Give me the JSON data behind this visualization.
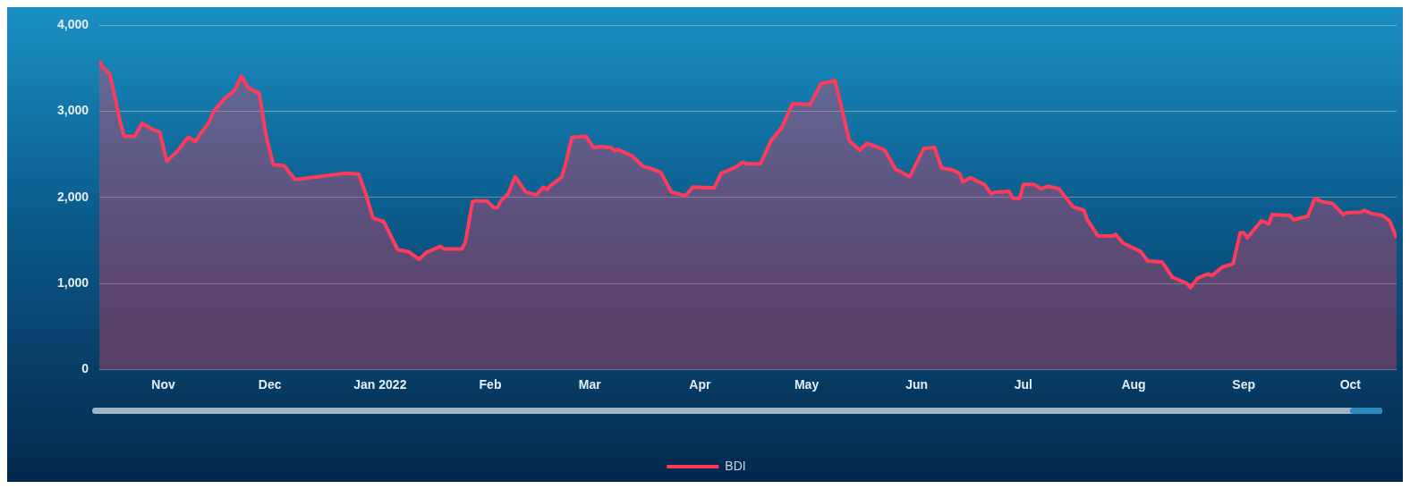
{
  "chart_data": {
    "type": "area",
    "x": [
      "2021-10-14",
      "2021-10-15",
      "2021-10-17",
      "2021-10-20",
      "2021-10-21",
      "2021-10-24",
      "2021-10-26",
      "2021-10-29",
      "2021-10-31",
      "2021-11-02",
      "2021-11-05",
      "2021-11-07",
      "2021-11-08",
      "2021-11-10",
      "2021-11-12",
      "2021-11-14",
      "2021-11-15",
      "2021-11-18",
      "2021-11-21",
      "2021-11-23",
      "2021-11-25",
      "2021-11-28",
      "2021-11-30",
      "2021-12-02",
      "2021-12-05",
      "2021-12-08",
      "2021-12-09",
      "2021-12-22",
      "2021-12-26",
      "2021-12-28",
      "2021-12-30",
      "2022-01-02",
      "2022-01-06",
      "2022-01-09",
      "2022-01-12",
      "2022-01-14",
      "2022-01-18",
      "2022-01-19",
      "2022-01-24",
      "2022-01-25",
      "2022-01-27",
      "2022-01-28",
      "2022-01-31",
      "2022-02-02",
      "2022-02-03",
      "2022-02-04",
      "2022-02-06",
      "2022-02-08",
      "2022-02-10",
      "2022-02-11",
      "2022-02-14",
      "2022-02-16",
      "2022-02-17",
      "2022-02-18",
      "2022-02-21",
      "2022-02-22",
      "2022-02-24",
      "2022-02-28",
      "2022-03-02",
      "2022-03-04",
      "2022-03-07",
      "2022-03-08",
      "2022-03-09",
      "2022-03-13",
      "2022-03-16",
      "2022-03-18",
      "2022-03-21",
      "2022-03-24",
      "2022-03-28",
      "2022-03-30",
      "2022-04-05",
      "2022-04-07",
      "2022-04-11",
      "2022-04-13",
      "2022-04-14",
      "2022-04-18",
      "2022-04-21",
      "2022-04-24",
      "2022-04-27",
      "2022-05-02",
      "2022-05-05",
      "2022-05-09",
      "2022-05-11",
      "2022-05-13",
      "2022-05-16",
      "2022-05-18",
      "2022-05-23",
      "2022-05-26",
      "2022-05-30",
      "2022-06-03",
      "2022-06-06",
      "2022-06-08",
      "2022-06-11",
      "2022-06-13",
      "2022-06-14",
      "2022-06-16",
      "2022-06-20",
      "2022-06-22",
      "2022-06-23",
      "2022-06-27",
      "2022-06-28",
      "2022-06-30",
      "2022-07-01",
      "2022-07-04",
      "2022-07-06",
      "2022-07-08",
      "2022-07-11",
      "2022-07-15",
      "2022-07-18",
      "2022-07-19",
      "2022-07-22",
      "2022-07-26",
      "2022-07-27",
      "2022-07-29",
      "2022-08-03",
      "2022-08-05",
      "2022-08-09",
      "2022-08-12",
      "2022-08-16",
      "2022-08-17",
      "2022-08-19",
      "2022-08-22",
      "2022-08-23",
      "2022-08-26",
      "2022-08-29",
      "2022-08-31",
      "2022-09-01",
      "2022-09-02",
      "2022-09-06",
      "2022-09-08",
      "2022-09-09",
      "2022-09-14",
      "2022-09-15",
      "2022-09-19",
      "2022-09-21",
      "2022-09-23",
      "2022-09-26",
      "2022-09-29",
      "2022-09-30",
      "2022-10-04",
      "2022-10-05",
      "2022-10-07",
      "2022-10-10",
      "2022-10-12",
      "2022-10-14"
    ],
    "series": [
      {
        "name": "BDI",
        "color": "#ff3b5c",
        "values": [
          3590,
          3510,
          3430,
          2860,
          2710,
          2710,
          2860,
          2790,
          2760,
          2420,
          2540,
          2650,
          2700,
          2650,
          2770,
          2880,
          2990,
          3140,
          3240,
          3410,
          3270,
          3210,
          2700,
          2380,
          2370,
          2210,
          2210,
          2280,
          2270,
          2040,
          1760,
          1720,
          1390,
          1370,
          1280,
          1360,
          1430,
          1400,
          1400,
          1480,
          1950,
          1960,
          1960,
          1880,
          1880,
          1960,
          2040,
          2240,
          2120,
          2060,
          2030,
          2120,
          2090,
          2140,
          2230,
          2360,
          2700,
          2710,
          2580,
          2590,
          2580,
          2540,
          2560,
          2480,
          2360,
          2340,
          2290,
          2060,
          2020,
          2120,
          2110,
          2280,
          2350,
          2410,
          2390,
          2390,
          2660,
          2810,
          3090,
          3080,
          3320,
          3360,
          3020,
          2660,
          2550,
          2630,
          2550,
          2330,
          2240,
          2570,
          2580,
          2340,
          2320,
          2280,
          2180,
          2230,
          2150,
          2040,
          2060,
          2070,
          1990,
          1990,
          2150,
          2150,
          2100,
          2130,
          2100,
          1890,
          1850,
          1740,
          1550,
          1550,
          1570,
          1470,
          1370,
          1260,
          1250,
          1070,
          1000,
          950,
          1060,
          1110,
          1090,
          1190,
          1230,
          1590,
          1590,
          1530,
          1730,
          1690,
          1800,
          1790,
          1740,
          1780,
          1990,
          1950,
          1930,
          1800,
          1820,
          1830,
          1850,
          1810,
          1790,
          1730,
          1530
        ]
      }
    ],
    "xlim": [
      "2021-10-14",
      "2022-10-14"
    ],
    "xticks": [
      {
        "value": "2021-11-01",
        "label": "Nov"
      },
      {
        "value": "2021-12-01",
        "label": "Dec"
      },
      {
        "value": "2022-01-01",
        "label": "Jan 2022"
      },
      {
        "value": "2022-02-01",
        "label": "Feb"
      },
      {
        "value": "2022-03-01",
        "label": "Mar"
      },
      {
        "value": "2022-04-01",
        "label": "Apr"
      },
      {
        "value": "2022-05-01",
        "label": "May"
      },
      {
        "value": "2022-06-01",
        "label": "Jun"
      },
      {
        "value": "2022-07-01",
        "label": "Jul"
      },
      {
        "value": "2022-08-01",
        "label": "Aug"
      },
      {
        "value": "2022-09-01",
        "label": "Sep"
      },
      {
        "value": "2022-10-01",
        "label": "Oct"
      }
    ],
    "ylim": [
      0,
      4000
    ],
    "yticks": [
      {
        "value": 0,
        "label": "0"
      },
      {
        "value": 1000,
        "label": "1,000"
      },
      {
        "value": 2000,
        "label": "2,000"
      },
      {
        "value": 3000,
        "label": "3,000"
      },
      {
        "value": 4000,
        "label": "4,000"
      }
    ],
    "grid": "y",
    "legend": "bottom",
    "marker": "none",
    "line_style": "solid"
  }
}
